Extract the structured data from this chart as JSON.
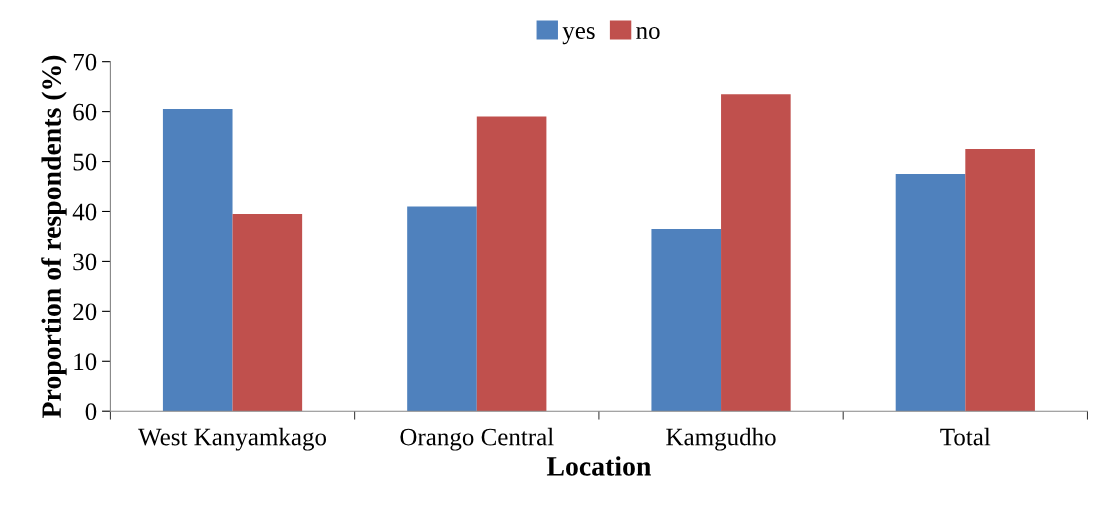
{
  "chart_data": {
    "type": "bar",
    "xlabel": "Location",
    "ylabel": "Proportion of respondents (%)",
    "categories": [
      "West Kanyamkago",
      "Orango Central",
      "Kamgudho",
      "Total"
    ],
    "series": [
      {
        "name": "yes",
        "color": "#4f81bd",
        "values": [
          60.5,
          41,
          36.5,
          47.5
        ]
      },
      {
        "name": "no",
        "color": "#c0504d",
        "values": [
          39.5,
          59,
          63.5,
          52.5
        ]
      }
    ],
    "ylim": [
      0,
      70
    ],
    "yticks": [
      0,
      10,
      20,
      30,
      40,
      50,
      60,
      70
    ],
    "grid": false,
    "legend": "top"
  }
}
